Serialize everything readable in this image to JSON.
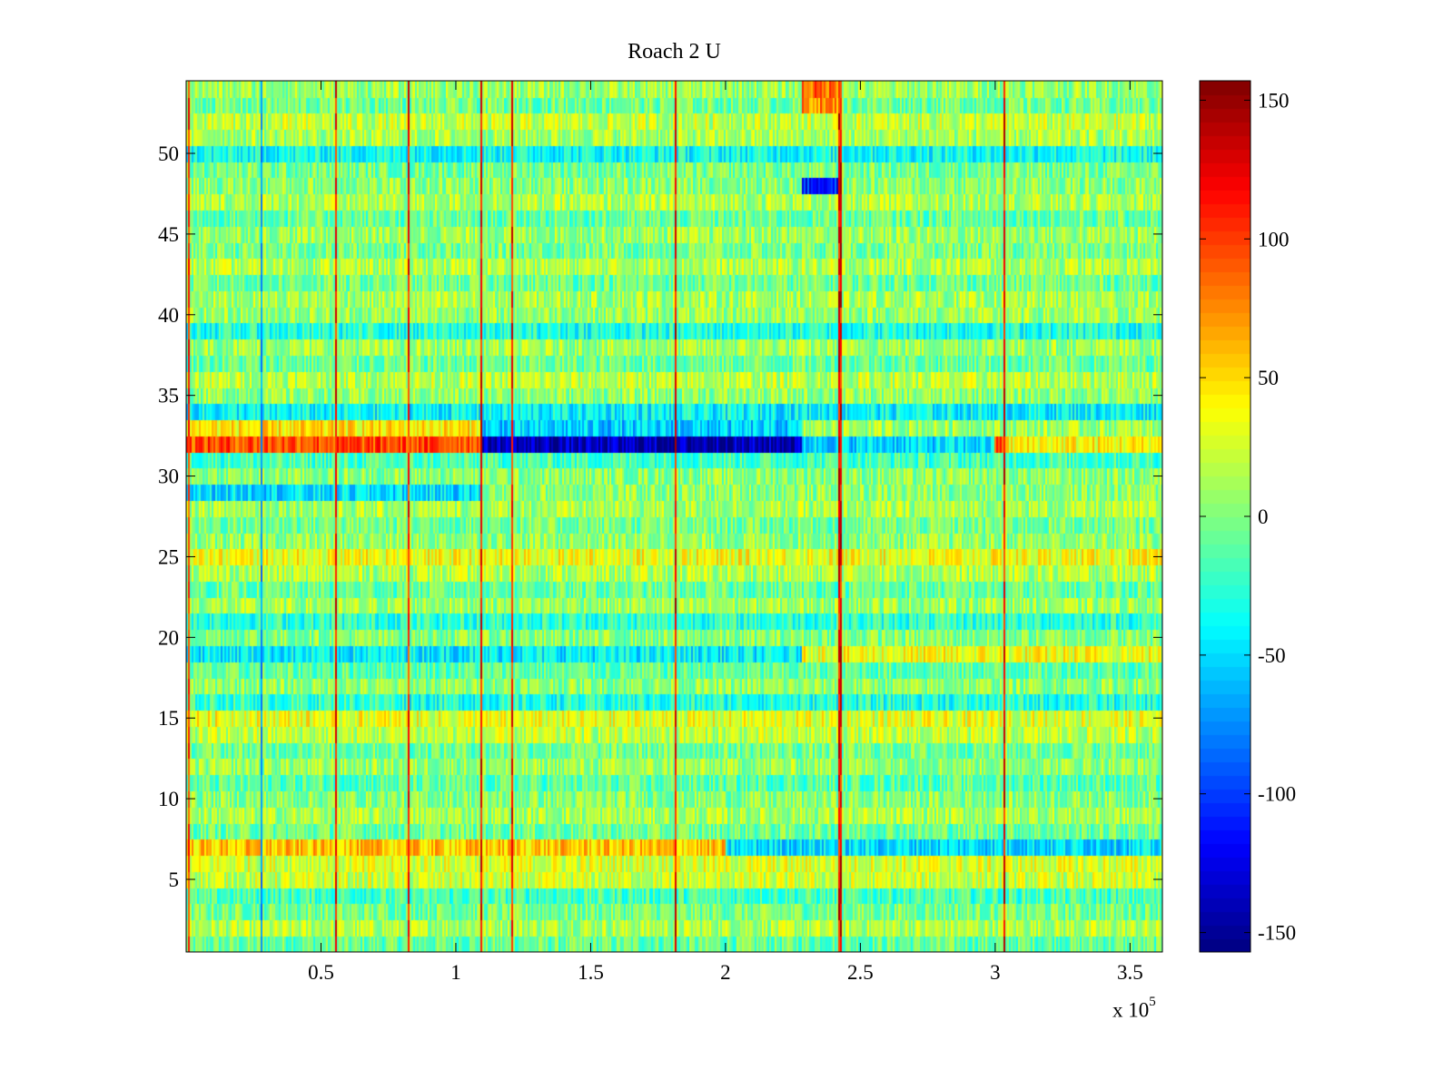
{
  "chart_data": {
    "type": "heatmap",
    "title": "Roach 2 U",
    "xlabel": "",
    "ylabel": "",
    "colormap": "jet",
    "x_range": [
      0,
      362000
    ],
    "y_range": [
      0.5,
      54.5
    ],
    "rows": 54,
    "clim": [
      -157,
      157
    ],
    "x_ticks": [
      {
        "value": 50000,
        "label": "0.5"
      },
      {
        "value": 100000,
        "label": "1"
      },
      {
        "value": 150000,
        "label": "1.5"
      },
      {
        "value": 200000,
        "label": "2"
      },
      {
        "value": 250000,
        "label": "2.5"
      },
      {
        "value": 300000,
        "label": "3"
      },
      {
        "value": 350000,
        "label": "3.5"
      }
    ],
    "x_multiplier": {
      "base": "x 10",
      "exponent": "5"
    },
    "y_ticks": [
      {
        "value": 5,
        "label": "5"
      },
      {
        "value": 10,
        "label": "10"
      },
      {
        "value": 15,
        "label": "15"
      },
      {
        "value": 20,
        "label": "20"
      },
      {
        "value": 25,
        "label": "25"
      },
      {
        "value": 30,
        "label": "30"
      },
      {
        "value": 35,
        "label": "35"
      },
      {
        "value": 40,
        "label": "40"
      },
      {
        "value": 45,
        "label": "45"
      },
      {
        "value": 50,
        "label": "50"
      }
    ],
    "colorbar_ticks": [
      {
        "value": 150,
        "label": "150"
      },
      {
        "value": 100,
        "label": "100"
      },
      {
        "value": 50,
        "label": "50"
      },
      {
        "value": 0,
        "label": "0"
      },
      {
        "value": -50,
        "label": "-50"
      },
      {
        "value": -100,
        "label": "-100"
      },
      {
        "value": -150,
        "label": "-150"
      }
    ],
    "row_baseline": {
      "1": -8,
      "2": 15,
      "3": -2,
      "4": -18,
      "5": 22,
      "6": 28,
      "7": 55,
      "8": -5,
      "9": 12,
      "10": 3,
      "11": -12,
      "12": 8,
      "13": -4,
      "14": 18,
      "15": 30,
      "16": -22,
      "17": 5,
      "18": -10,
      "19": -42,
      "20": 2,
      "21": -25,
      "22": 10,
      "23": -8,
      "24": 15,
      "25": 35,
      "26": 6,
      "27": -3,
      "28": 12,
      "29": -48,
      "30": 4,
      "31": -18,
      "32": 95,
      "33": 45,
      "34": -40,
      "35": 5,
      "36": 18,
      "37": -6,
      "38": 10,
      "39": -30,
      "40": 8,
      "41": 12,
      "42": -5,
      "43": 15,
      "44": -2,
      "45": 9,
      "46": -8,
      "47": 14,
      "48": 4,
      "49": -3,
      "50": -35,
      "51": 12,
      "52": 20,
      "53": -4,
      "54": 8
    },
    "row_overrides": [
      {
        "row": 32,
        "x_start": 110000,
        "x_end": 228000,
        "value": -140
      },
      {
        "row": 33,
        "x_start": 110000,
        "x_end": 228000,
        "value": -55
      },
      {
        "row": 32,
        "x_start": 228000,
        "x_end": 300000,
        "value": -50
      },
      {
        "row": 32,
        "x_start": 304000,
        "x_end": 362000,
        "value": 40
      },
      {
        "row": 33,
        "x_start": 228000,
        "x_end": 362000,
        "value": 10
      },
      {
        "row": 29,
        "x_start": 110000,
        "x_end": 362000,
        "value": 5
      },
      {
        "row": 7,
        "x_start": 200000,
        "x_end": 362000,
        "value": -48
      },
      {
        "row": 8,
        "x_start": 200000,
        "x_end": 362000,
        "value": -5
      },
      {
        "row": 54,
        "x_start": 228000,
        "x_end": 242000,
        "value": 85
      },
      {
        "row": 53,
        "x_start": 228000,
        "x_end": 242000,
        "value": 75
      },
      {
        "row": 48,
        "x_start": 228000,
        "x_end": 242000,
        "value": -110
      },
      {
        "row": 19,
        "x_start": 228000,
        "x_end": 362000,
        "value": 35
      },
      {
        "row": 15,
        "x_start": 0,
        "x_end": 85000,
        "value": 35
      },
      {
        "row": 16,
        "x_start": 80000,
        "x_end": 362000,
        "value": -30
      }
    ],
    "stripes": [
      {
        "x": 1000,
        "value": 130
      },
      {
        "x": 28000,
        "value": -90
      },
      {
        "x": 55500,
        "value": 140
      },
      {
        "x": 82500,
        "value": 135
      },
      {
        "x": 109500,
        "value": 150
      },
      {
        "x": 121000,
        "value": 140
      },
      {
        "x": 181500,
        "value": 150
      },
      {
        "x": 242500,
        "value": 150
      },
      {
        "x": 303500,
        "value": 145
      }
    ]
  }
}
